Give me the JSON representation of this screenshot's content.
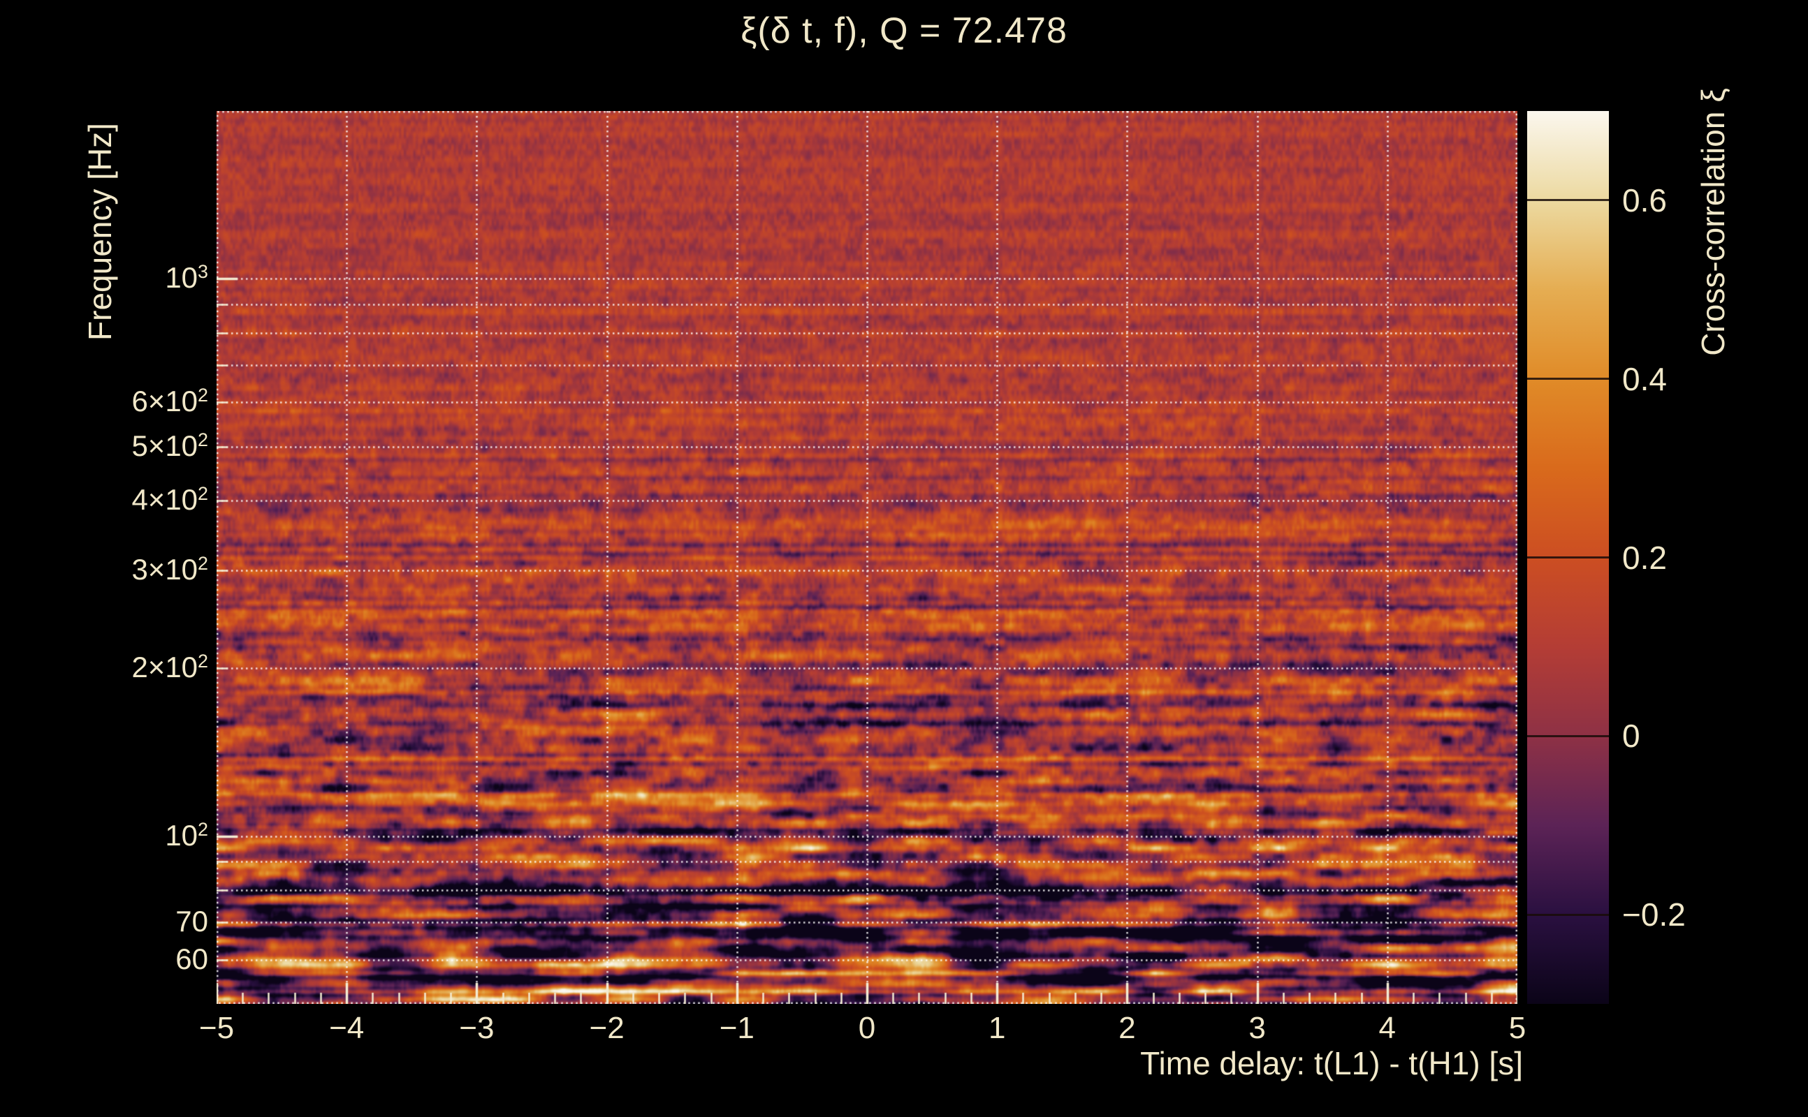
{
  "figure": {
    "background_color": "#000000",
    "text_color": "#f1e8c9",
    "grid_color": "#ffffff"
  },
  "chart_data": {
    "type": "heatmap",
    "title": "ξ(δ t, f), Q = 72.478",
    "q_value": 72.478,
    "xlabel": "Time delay: t(L1) - t(H1) [s]",
    "ylabel": "Frequency [Hz]",
    "colorbar_label": "Cross-correlation ξ",
    "x_axis": {
      "min": -5,
      "max": 5,
      "scale": "linear",
      "major_ticks": [
        -5,
        -4,
        -3,
        -2,
        -1,
        0,
        1,
        2,
        3,
        4,
        5
      ],
      "tick_labels": [
        "−5",
        "−4",
        "−3",
        "−2",
        "−1",
        "0",
        "1",
        "2",
        "3",
        "4",
        "5"
      ],
      "minor_tick_step": 0.2,
      "gridlines": [
        -4,
        -3,
        -2,
        -1,
        0,
        1,
        2,
        3,
        4
      ]
    },
    "y_axis": {
      "min": 50,
      "max": 2000,
      "scale": "log",
      "decade_ticks": [
        100,
        1000
      ],
      "gridline_freqs": [
        60,
        70,
        80,
        90,
        100,
        200,
        300,
        400,
        500,
        600,
        700,
        800,
        900,
        1000
      ],
      "tick_labels": [
        {
          "freq": 1000,
          "base": "10",
          "exp": "3"
        },
        {
          "freq": 600,
          "base": "6×10",
          "exp": "2"
        },
        {
          "freq": 500,
          "base": "5×10",
          "exp": "2"
        },
        {
          "freq": 400,
          "base": "4×10",
          "exp": "2"
        },
        {
          "freq": 300,
          "base": "3×10",
          "exp": "2"
        },
        {
          "freq": 200,
          "base": "2×10",
          "exp": "2"
        },
        {
          "freq": 100,
          "base": "10",
          "exp": "2"
        },
        {
          "freq": 70,
          "base": "70",
          "exp": ""
        },
        {
          "freq": 60,
          "base": "60",
          "exp": ""
        }
      ]
    },
    "colorbar": {
      "min": -0.3,
      "max": 0.7,
      "ticks": [
        {
          "value": 0.6,
          "label": "0.6"
        },
        {
          "value": 0.4,
          "label": "0.4"
        },
        {
          "value": 0.2,
          "label": "0.2"
        },
        {
          "value": 0,
          "label": "0"
        },
        {
          "value": -0.2,
          "label": "−0.2"
        }
      ]
    },
    "colormap_stops": [
      {
        "value": -0.3,
        "color": "#0b0418"
      },
      {
        "value": -0.2,
        "color": "#2a1040"
      },
      {
        "value": -0.1,
        "color": "#5c2356"
      },
      {
        "value": 0.0,
        "color": "#8e3145"
      },
      {
        "value": 0.1,
        "color": "#b43d35"
      },
      {
        "value": 0.2,
        "color": "#cc4e22"
      },
      {
        "value": 0.3,
        "color": "#d96a1c"
      },
      {
        "value": 0.4,
        "color": "#e08b28"
      },
      {
        "value": 0.5,
        "color": "#e5ad52"
      },
      {
        "value": 0.6,
        "color": "#ecd9a0"
      },
      {
        "value": 0.7,
        "color": "#fbf7ee"
      }
    ],
    "pattern": "Random cross-correlation noise: fine vertical grain of dark red near 2 kHz, coarser orange/purple mottling in mid frequencies, and large bright cream/orange horizontal streaks with near-black patches below ~200 Hz; white dotted log-grid overlays the map."
  }
}
